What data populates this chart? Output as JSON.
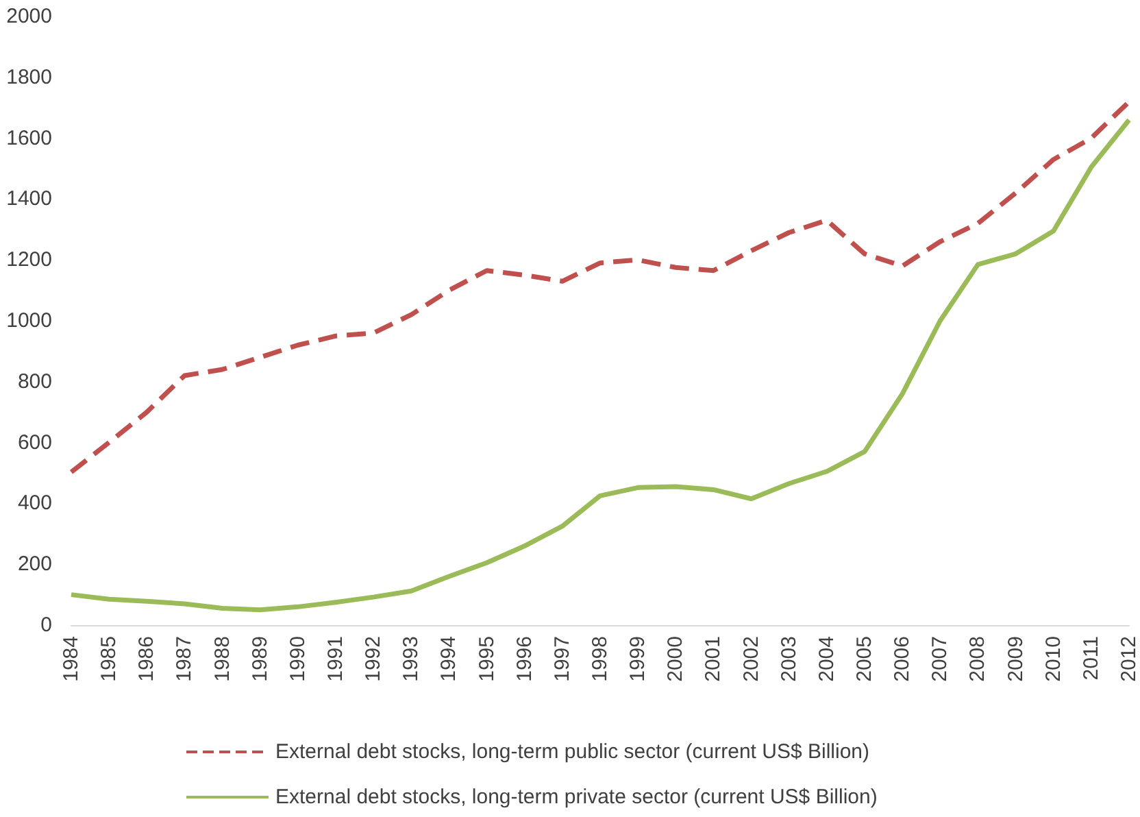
{
  "chart_data": {
    "type": "line",
    "categories": [
      "1984",
      "1985",
      "1986",
      "1987",
      "1988",
      "1989",
      "1990",
      "1991",
      "1992",
      "1993",
      "1994",
      "1995",
      "1996",
      "1997",
      "1998",
      "1999",
      "2000",
      "2001",
      "2002",
      "2003",
      "2004",
      "2005",
      "2006",
      "2007",
      "2008",
      "2009",
      "2010",
      "2011",
      "2012"
    ],
    "series": [
      {
        "name": "External debt stocks, long-term public sector (current US$ Billion)",
        "color": "#c0504d",
        "line_style": "dashed",
        "values": [
          503,
          600,
          700,
          820,
          840,
          880,
          920,
          950,
          960,
          1020,
          1100,
          1165,
          1150,
          1130,
          1190,
          1200,
          1175,
          1165,
          1230,
          1290,
          1330,
          1220,
          1180,
          1260,
          1320,
          1420,
          1530,
          1600,
          1720
        ]
      },
      {
        "name": "External debt stocks, long-term private sector (current US$ Billion)",
        "color": "#9bbb59",
        "line_style": "solid",
        "values": [
          100,
          85,
          78,
          70,
          55,
          50,
          60,
          75,
          92,
          112,
          160,
          205,
          260,
          325,
          425,
          452,
          455,
          445,
          415,
          465,
          505,
          570,
          760,
          1000,
          1185,
          1220,
          1295,
          1505,
          1660
        ]
      }
    ],
    "ylim": [
      0,
      2000
    ],
    "yticks": [
      0,
      200,
      400,
      600,
      800,
      1000,
      1200,
      1400,
      1600,
      1800,
      2000
    ],
    "grid": false,
    "legend": "bottom",
    "marker": "none"
  }
}
